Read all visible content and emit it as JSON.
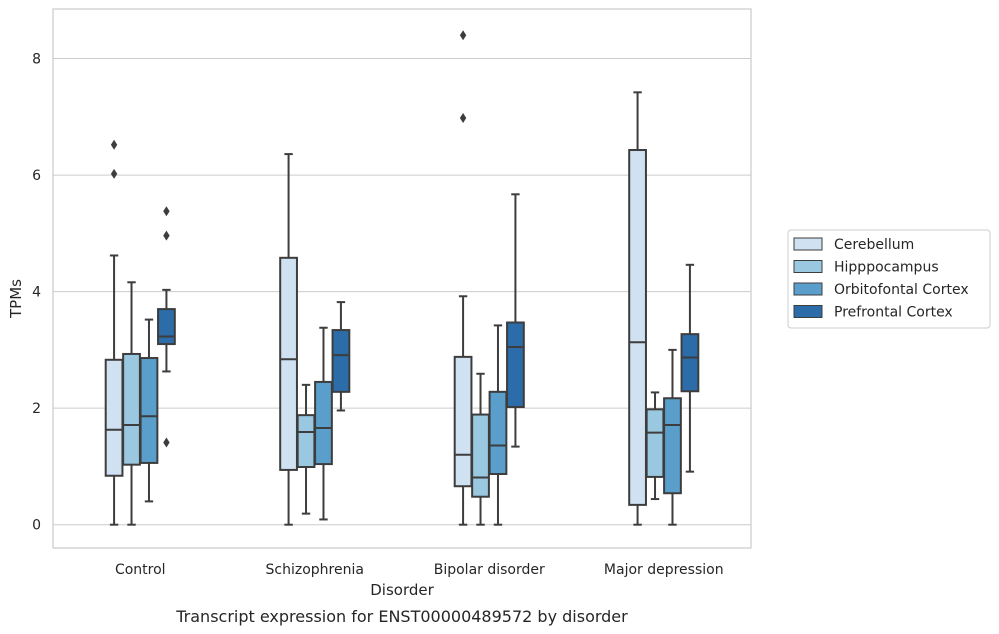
{
  "chart_data": {
    "type": "box",
    "caption": "Transcript expression for ENST00000489572 by disorder",
    "xlabel": "Disorder",
    "ylabel": "TPMs",
    "ylim": [
      -0.4,
      8.85
    ],
    "yticks": [
      0,
      2,
      4,
      6,
      8
    ],
    "grid": "horizontal",
    "legend_position": "right",
    "categories": [
      "Control",
      "Schizophrenia",
      "Bipolar disorder",
      "Major depression"
    ],
    "series": [
      {
        "name": "Cerebellum",
        "color": "#d0e1f2",
        "boxes": [
          {
            "whislo": 0.0,
            "q1": 0.84,
            "med": 1.63,
            "q3": 2.83,
            "whishi": 4.62,
            "fliers": [
              6.02,
              6.52
            ]
          },
          {
            "whislo": 0.0,
            "q1": 0.94,
            "med": 2.84,
            "q3": 4.58,
            "whishi": 6.36,
            "fliers": []
          },
          {
            "whislo": 0.0,
            "q1": 0.66,
            "med": 1.2,
            "q3": 2.88,
            "whishi": 3.92,
            "fliers": [
              6.98,
              8.4
            ]
          },
          {
            "whislo": 0.0,
            "q1": 0.34,
            "med": 3.13,
            "q3": 6.43,
            "whishi": 7.42,
            "fliers": []
          }
        ]
      },
      {
        "name": "Hipppocampus",
        "color": "#9ac8e0",
        "boxes": [
          {
            "whislo": 0.0,
            "q1": 1.03,
            "med": 1.71,
            "q3": 2.93,
            "whishi": 4.16,
            "fliers": []
          },
          {
            "whislo": 0.19,
            "q1": 0.99,
            "med": 1.59,
            "q3": 1.88,
            "whishi": 2.4,
            "fliers": []
          },
          {
            "whislo": 0.0,
            "q1": 0.48,
            "med": 0.81,
            "q3": 1.89,
            "whishi": 2.59,
            "fliers": []
          },
          {
            "whislo": 0.44,
            "q1": 0.82,
            "med": 1.58,
            "q3": 1.98,
            "whishi": 2.27,
            "fliers": []
          }
        ]
      },
      {
        "name": "Orbitofontal Cortex",
        "color": "#5a9fcc",
        "boxes": [
          {
            "whislo": 0.4,
            "q1": 1.06,
            "med": 1.86,
            "q3": 2.86,
            "whishi": 3.52,
            "fliers": []
          },
          {
            "whislo": 0.09,
            "q1": 1.04,
            "med": 1.66,
            "q3": 2.45,
            "whishi": 3.38,
            "fliers": []
          },
          {
            "whislo": 0.0,
            "q1": 0.87,
            "med": 1.36,
            "q3": 2.28,
            "whishi": 3.42,
            "fliers": []
          },
          {
            "whislo": 0.0,
            "q1": 0.54,
            "med": 1.71,
            "q3": 2.17,
            "whishi": 3.0,
            "fliers": []
          }
        ]
      },
      {
        "name": "Prefrontal Cortex",
        "color": "#2b6ca9",
        "boxes": [
          {
            "whislo": 2.63,
            "q1": 3.1,
            "med": 3.23,
            "q3": 3.7,
            "whishi": 4.03,
            "fliers": [
              1.41,
              4.96,
              5.38
            ]
          },
          {
            "whislo": 1.96,
            "q1": 2.28,
            "med": 2.91,
            "q3": 3.34,
            "whishi": 3.82,
            "fliers": []
          },
          {
            "whislo": 1.34,
            "q1": 2.02,
            "med": 3.05,
            "q3": 3.47,
            "whishi": 5.67,
            "fliers": []
          },
          {
            "whislo": 0.91,
            "q1": 2.29,
            "med": 2.87,
            "q3": 3.27,
            "whishi": 4.46,
            "fliers": []
          }
        ]
      }
    ]
  }
}
